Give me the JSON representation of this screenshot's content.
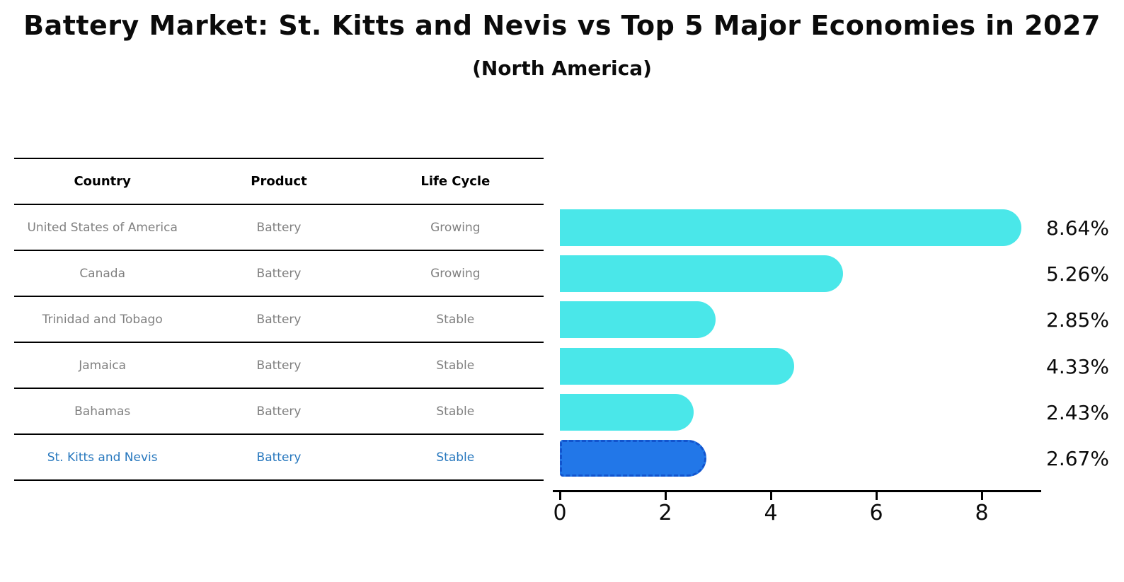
{
  "title": "Battery Market: St. Kitts and Nevis vs Top 5 Major Economies in 2027",
  "subtitle": "(North America)",
  "table": {
    "headers": [
      "Country",
      "Product",
      "Life Cycle"
    ],
    "rows": [
      {
        "country": "United States of America",
        "product": "Battery",
        "life_cycle": "Growing",
        "highlighted": false
      },
      {
        "country": "Canada",
        "product": "Battery",
        "life_cycle": "Growing",
        "highlighted": false
      },
      {
        "country": "Trinidad and Tobago",
        "product": "Battery",
        "life_cycle": "Stable",
        "highlighted": false
      },
      {
        "country": "Jamaica",
        "product": "Battery",
        "life_cycle": "Stable",
        "highlighted": false
      },
      {
        "country": "Bahamas",
        "product": "Battery",
        "life_cycle": "Stable",
        "highlighted": false
      },
      {
        "country": "St. Kitts and Nevis",
        "product": "Battery",
        "life_cycle": "Stable",
        "highlighted": true
      }
    ]
  },
  "chart_data": {
    "type": "bar",
    "orientation": "horizontal",
    "title": "Battery Market: St. Kitts and Nevis vs Top 5 Major Economies in 2027 (North America)",
    "categories": [
      "United States of America",
      "Canada",
      "Trinidad and Tobago",
      "Jamaica",
      "Bahamas",
      "St. Kitts and Nevis"
    ],
    "values": [
      8.64,
      5.26,
      2.85,
      4.33,
      2.43,
      2.67
    ],
    "value_labels": [
      "8.64%",
      "5.26%",
      "2.85%",
      "4.33%",
      "2.43%",
      "2.67%"
    ],
    "xticks": [
      0,
      2,
      4,
      6,
      8
    ],
    "xlim": [
      0,
      9.1
    ],
    "grid": false,
    "legend": false,
    "bar_color": "#4ae7e9",
    "highlight_index": 5,
    "highlight_bar_color": "#2277e8",
    "highlight_bar_border_color": "#1254cd",
    "highlight_text_color": "#2878be"
  }
}
